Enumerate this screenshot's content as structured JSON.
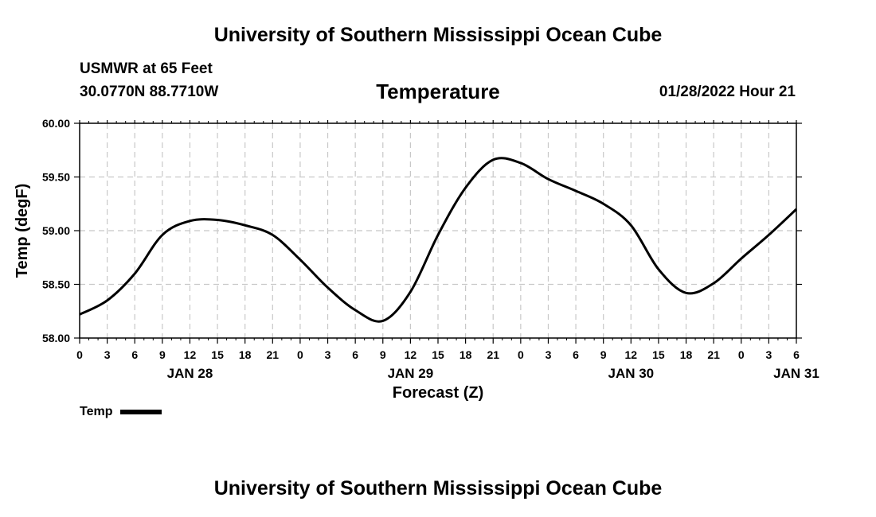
{
  "page": {
    "title_top": "University of Southern Mississippi Ocean Cube",
    "title_bottom": "University of Southern Mississippi Ocean Cube",
    "station": "USMWR at 65 Feet",
    "coords": "30.0770N  88.7710W",
    "chart_title": "Temperature",
    "datetime": "01/28/2022 Hour 21"
  },
  "chart_data": {
    "type": "line",
    "title": "Temperature",
    "xlabel": "Forecast (Z)",
    "ylabel": "Temp (degF)",
    "ylim": [
      58.0,
      60.0
    ],
    "yticks": [
      "58.00",
      "58.50",
      "59.00",
      "59.50",
      "60.00"
    ],
    "xlim_hours": [
      0,
      78
    ],
    "x_tick_labels": [
      "0",
      "3",
      "6",
      "9",
      "12",
      "15",
      "18",
      "21",
      "0",
      "3",
      "6",
      "9",
      "12",
      "15",
      "18",
      "21",
      "0",
      "3",
      "6",
      "9",
      "12",
      "15",
      "18",
      "21",
      "0",
      "3",
      "6"
    ],
    "date_labels": [
      {
        "label": "JAN 28",
        "hour": 12
      },
      {
        "label": "JAN 29",
        "hour": 36
      },
      {
        "label": "JAN 30",
        "hour": 60
      },
      {
        "label": "JAN 31",
        "hour": 78
      }
    ],
    "grid": true,
    "legend": "bottom-left",
    "series": [
      {
        "name": "Temp",
        "color": "#000000",
        "x_hours": [
          0,
          3,
          6,
          9,
          12,
          15,
          18,
          21,
          24,
          27,
          30,
          33,
          36,
          39,
          42,
          45,
          48,
          51,
          54,
          57,
          60,
          63,
          66,
          69,
          72,
          75,
          78
        ],
        "values": [
          58.22,
          58.35,
          58.6,
          58.96,
          59.09,
          59.1,
          59.05,
          58.96,
          58.73,
          58.47,
          58.26,
          58.16,
          58.43,
          58.96,
          59.4,
          59.66,
          59.63,
          59.48,
          59.37,
          59.25,
          59.05,
          58.64,
          58.42,
          58.51,
          58.74,
          58.96,
          59.2
        ]
      }
    ]
  },
  "legend": {
    "label": "Temp"
  }
}
